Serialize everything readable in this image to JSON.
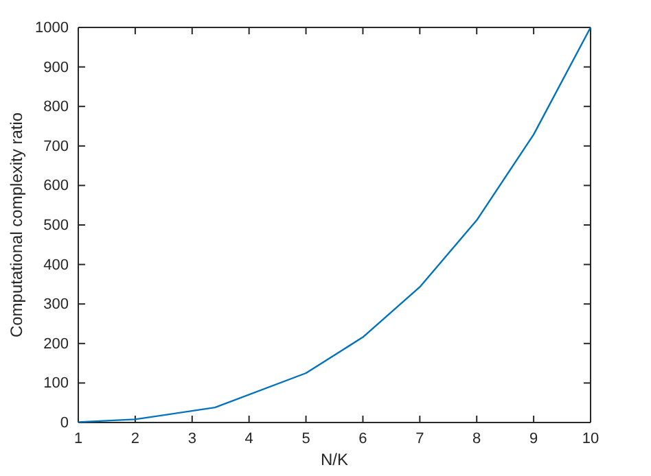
{
  "chart_data": {
    "type": "line",
    "xlabel": "N/K",
    "ylabel": "Computational complexity ratio",
    "x": [
      1,
      2,
      3.4,
      5,
      6,
      7,
      8,
      9,
      10
    ],
    "series": [
      {
        "color": "#0072bd",
        "values": [
          1,
          8,
          38,
          125,
          216,
          343,
          512,
          729,
          1000
        ]
      }
    ],
    "xlim": [
      1,
      10
    ],
    "xticks": [
      1,
      2,
      3,
      4,
      5,
      6,
      7,
      8,
      9,
      10
    ],
    "ylim": [
      0,
      1000
    ],
    "yticks": [
      0,
      100,
      200,
      300,
      400,
      500,
      600,
      700,
      800,
      900,
      1000
    ],
    "grid": false,
    "marker": "none",
    "line_style": "solid"
  }
}
